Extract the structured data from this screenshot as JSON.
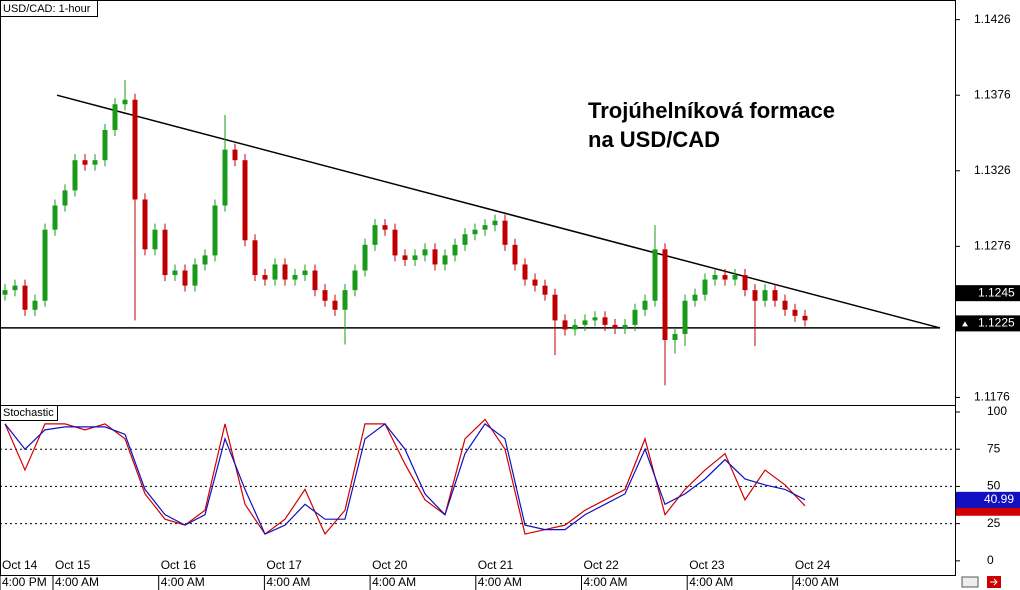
{
  "chart_data": [
    {
      "type": "candlestick",
      "title": "USD/CAD: 1-hour",
      "annotation": [
        "Trojúhelníková formace",
        "na USD/CAD"
      ],
      "candles": [
        [
          1.1244,
          1.1251,
          1.124,
          1.1247
        ],
        [
          1.1247,
          1.1254,
          1.1243,
          1.125
        ],
        [
          1.125,
          1.1254,
          1.123,
          1.1234
        ],
        [
          1.1234,
          1.1244,
          1.123,
          1.124
        ],
        [
          1.124,
          1.1291,
          1.1236,
          1.1287
        ],
        [
          1.1287,
          1.1307,
          1.1283,
          1.1303
        ],
        [
          1.1303,
          1.1317,
          1.1299,
          1.1313
        ],
        [
          1.1313,
          1.1337,
          1.1309,
          1.1333
        ],
        [
          1.1333,
          1.1337,
          1.1326,
          1.133
        ],
        [
          1.133,
          1.1337,
          1.1326,
          1.1333
        ],
        [
          1.1333,
          1.1357,
          1.1329,
          1.1353
        ],
        [
          1.1353,
          1.1374,
          1.1349,
          1.137
        ],
        [
          1.137,
          1.1386,
          1.1366,
          1.1373
        ],
        [
          1.1373,
          1.1377,
          1.1227,
          1.1307
        ],
        [
          1.1307,
          1.1311,
          1.127,
          1.1274
        ],
        [
          1.1274,
          1.1291,
          1.127,
          1.1287
        ],
        [
          1.1287,
          1.1291,
          1.1253,
          1.1257
        ],
        [
          1.1257,
          1.1264,
          1.1253,
          1.126
        ],
        [
          1.126,
          1.1264,
          1.1246,
          1.125
        ],
        [
          1.125,
          1.1268,
          1.1246,
          1.1264
        ],
        [
          1.1264,
          1.1274,
          1.126,
          1.127
        ],
        [
          1.127,
          1.1307,
          1.1266,
          1.1303
        ],
        [
          1.1303,
          1.1363,
          1.1299,
          1.134
        ],
        [
          1.134,
          1.1344,
          1.1329,
          1.1333
        ],
        [
          1.1333,
          1.1337,
          1.1276,
          1.128
        ],
        [
          1.128,
          1.1284,
          1.1253,
          1.1257
        ],
        [
          1.1257,
          1.1261,
          1.125,
          1.1254
        ],
        [
          1.1254,
          1.1268,
          1.125,
          1.1264
        ],
        [
          1.1264,
          1.1268,
          1.125,
          1.1254
        ],
        [
          1.1254,
          1.1261,
          1.125,
          1.1257
        ],
        [
          1.1257,
          1.1264,
          1.1253,
          1.126
        ],
        [
          1.126,
          1.1264,
          1.1243,
          1.1247
        ],
        [
          1.1247,
          1.1251,
          1.1236,
          1.124
        ],
        [
          1.124,
          1.1244,
          1.123,
          1.1234
        ],
        [
          1.1234,
          1.1251,
          1.1211,
          1.1247
        ],
        [
          1.1247,
          1.1264,
          1.1243,
          1.126
        ],
        [
          1.126,
          1.1281,
          1.1256,
          1.1277
        ],
        [
          1.1277,
          1.1294,
          1.1273,
          1.129
        ],
        [
          1.129,
          1.1294,
          1.1283,
          1.1287
        ],
        [
          1.1287,
          1.1291,
          1.1266,
          1.127
        ],
        [
          1.127,
          1.1274,
          1.1263,
          1.1267
        ],
        [
          1.1267,
          1.1274,
          1.1263,
          1.127
        ],
        [
          1.127,
          1.1278,
          1.1266,
          1.1274
        ],
        [
          1.1274,
          1.1278,
          1.126,
          1.1264
        ],
        [
          1.1264,
          1.1274,
          1.126,
          1.127
        ],
        [
          1.127,
          1.1281,
          1.1266,
          1.1277
        ],
        [
          1.1277,
          1.1288,
          1.1273,
          1.1284
        ],
        [
          1.1284,
          1.1291,
          1.128,
          1.1287
        ],
        [
          1.1287,
          1.1294,
          1.1283,
          1.129
        ],
        [
          1.129,
          1.1297,
          1.1286,
          1.1293
        ],
        [
          1.1293,
          1.1297,
          1.1273,
          1.1277
        ],
        [
          1.1277,
          1.1281,
          1.126,
          1.1264
        ],
        [
          1.1264,
          1.1268,
          1.125,
          1.1254
        ],
        [
          1.1254,
          1.1258,
          1.1246,
          1.125
        ],
        [
          1.125,
          1.1254,
          1.124,
          1.1244
        ],
        [
          1.1244,
          1.1248,
          1.1204,
          1.1227
        ],
        [
          1.1227,
          1.1231,
          1.1217,
          1.1221
        ],
        [
          1.1221,
          1.1228,
          1.1217,
          1.1224
        ],
        [
          1.1224,
          1.1231,
          1.122,
          1.1227
        ],
        [
          1.1227,
          1.1233,
          1.1223,
          1.1229
        ],
        [
          1.1229,
          1.1233,
          1.122,
          1.1224
        ],
        [
          1.1224,
          1.1228,
          1.1218,
          1.1222
        ],
        [
          1.1222,
          1.1228,
          1.1218,
          1.1224
        ],
        [
          1.1224,
          1.1238,
          1.122,
          1.1234
        ],
        [
          1.1234,
          1.1244,
          1.123,
          1.124
        ],
        [
          1.124,
          1.129,
          1.1236,
          1.1274
        ],
        [
          1.1274,
          1.1278,
          1.1184,
          1.1214
        ],
        [
          1.1214,
          1.1222,
          1.1205,
          1.1218
        ],
        [
          1.1218,
          1.1244,
          1.121,
          1.124
        ],
        [
          1.124,
          1.1248,
          1.1236,
          1.1244
        ],
        [
          1.1244,
          1.1258,
          1.124,
          1.1254
        ],
        [
          1.1254,
          1.1261,
          1.125,
          1.1257
        ],
        [
          1.1257,
          1.1261,
          1.125,
          1.1254
        ],
        [
          1.1254,
          1.1261,
          1.125,
          1.1257
        ],
        [
          1.1257,
          1.1261,
          1.1243,
          1.1247
        ],
        [
          1.1247,
          1.1251,
          1.121,
          1.124
        ],
        [
          1.124,
          1.1251,
          1.1236,
          1.1247
        ],
        [
          1.1247,
          1.1251,
          1.1236,
          1.124
        ],
        [
          1.124,
          1.1244,
          1.123,
          1.1234
        ],
        [
          1.1234,
          1.1238,
          1.1226,
          1.123
        ],
        [
          1.123,
          1.1234,
          1.1223,
          1.1227
        ]
      ],
      "up_color": "#1a9a1a",
      "down_color": "#c00000",
      "trendline": [
        1.1376,
        1.1222
      ],
      "support": 1.1222,
      "price_markers": [
        1.1245,
        1.1225
      ],
      "ylim": [
        1.1171,
        1.1439
      ],
      "yticks": [
        1.1426,
        1.1376,
        1.1326,
        1.1276,
        1.1176
      ]
    },
    {
      "type": "line",
      "title": "Stochastic",
      "series": [
        {
          "color": "#d00000",
          "values": [
            92,
            61,
            92,
            92,
            88,
            92,
            82,
            45,
            28,
            24,
            34,
            92,
            38,
            18,
            28,
            48,
            18,
            34,
            92,
            92,
            65,
            41,
            31,
            82,
            95,
            75,
            18,
            21,
            24,
            34,
            41,
            48,
            82,
            31,
            48,
            61,
            72,
            41,
            61,
            51,
            37
          ]
        },
        {
          "color": "#1010c0",
          "values": [
            92,
            75,
            88,
            90,
            90,
            90,
            85,
            48,
            31,
            24,
            31,
            82,
            48,
            18,
            24,
            38,
            28,
            28,
            82,
            92,
            75,
            45,
            31,
            72,
            92,
            82,
            24,
            21,
            21,
            31,
            38,
            45,
            75,
            38,
            45,
            55,
            68,
            55,
            51,
            48,
            40.99
          ]
        }
      ],
      "ylim": [
        -9.5,
        104.7
      ],
      "yticks": [
        100,
        75,
        50,
        25,
        0
      ],
      "dashed": [
        75,
        50,
        25
      ]
    },
    {
      "type": "time-axis",
      "dates": [
        "Oct 14",
        "Oct 15",
        "Oct 16",
        "Oct 17",
        "Oct 20",
        "Oct 21",
        "Oct 22",
        "Oct 23",
        "Oct 24"
      ],
      "times": [
        "4:00 PM",
        "4:00 AM",
        "4:00 AM",
        "4:00 AM",
        "4:00 AM",
        "4:00 AM",
        "4:00 AM",
        "4:00 AM",
        "4:00 AM"
      ]
    }
  ]
}
